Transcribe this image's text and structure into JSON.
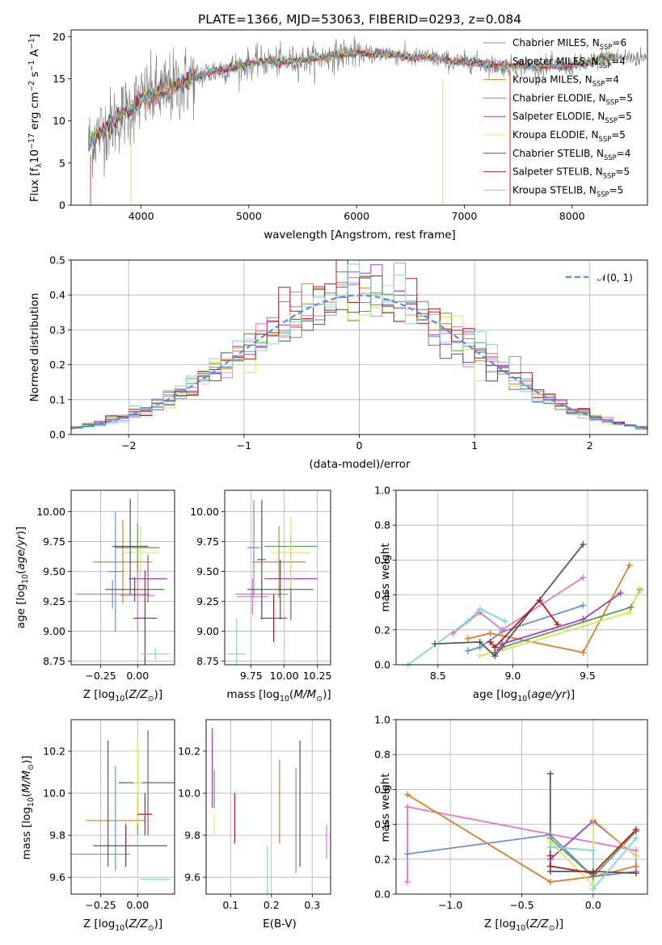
{
  "chart_data": [
    {
      "type": "line",
      "title": "PLATE=1366, MJD=53063, FIBERID=0293, z=0.084",
      "xlabel": "wavelength [Angstrom, rest frame]",
      "ylabel": "Flux [fλ10⁻¹⁷ erg cm⁻² s⁻¹ A⁻¹]",
      "xlim": [
        3350,
        8700
      ],
      "ylim": [
        0,
        20.8
      ],
      "xticks": [
        4000,
        5000,
        6000,
        7000,
        8000
      ],
      "yticks": [
        0,
        5,
        10,
        15,
        20
      ],
      "grid": false,
      "legend_position": "right",
      "continuum": {
        "x": [
          3500,
          3600,
          3700,
          3800,
          3900,
          4000,
          4100,
          4200,
          4300,
          4400,
          4500,
          4700,
          4900,
          5100,
          5300,
          5500,
          5700,
          5900,
          6100,
          6300,
          6500,
          6700,
          6900,
          7100,
          7300,
          7400,
          7600,
          7800,
          8000,
          8200,
          8300
        ],
        "y": [
          7.0,
          8.5,
          9.5,
          10.5,
          11.5,
          12.5,
          13.0,
          13.5,
          14.0,
          14.5,
          15.2,
          16.0,
          16.5,
          17.0,
          17.0,
          17.2,
          17.5,
          18.0,
          18.0,
          18.0,
          17.5,
          17.5,
          17.0,
          17.0,
          16.5,
          16.5,
          16.5,
          16.5,
          16.5,
          17.0,
          17.5
        ]
      },
      "series": [
        {
          "name": "Chabrier MILES, N_SSP=6",
          "label": "Chabrier MILES, N",
          "sub": "SSP",
          "n": "=6",
          "color": "#6a8fd8"
        },
        {
          "name": "Salpeter MILES, N_SSP=4",
          "label": "Salpeter MILES, N",
          "sub": "SSP",
          "n": "=4",
          "color": "#e377c2"
        },
        {
          "name": "Kroupa MILES, N_SSP=4",
          "label": "Kroupa MILES, N",
          "sub": "SSP",
          "n": "=4",
          "color": "#d97c2b"
        },
        {
          "name": "Chabrier ELODIE, N_SSP=5",
          "label": "Chabrier ELODIE, N",
          "sub": "SSP",
          "n": "=5",
          "color": "#5b9a5b"
        },
        {
          "name": "Salpeter ELODIE, N_SSP=5",
          "label": "Salpeter ELODIE, N",
          "sub": "SSP",
          "n": "=5",
          "color": "#a13fb8"
        },
        {
          "name": "Kroupa ELODIE, N_SSP=5",
          "label": "Kroupa ELODIE, N",
          "sub": "SSP",
          "n": "=5",
          "color": "#d4e85a"
        },
        {
          "name": "Chabrier STELIB, N_SSP=4",
          "label": "Chabrier STELIB, N",
          "sub": "SSP",
          "n": "=4",
          "color": "#555555"
        },
        {
          "name": "Salpeter STELIB, N_SSP=5",
          "label": "Salpeter STELIB, N",
          "sub": "SSP",
          "n": "=5",
          "color": "#b21c1c"
        },
        {
          "name": "Kroupa STELIB, N_SSP=5",
          "label": "Kroupa STELIB, N",
          "sub": "SSP",
          "n": "=5",
          "color": "#7fd6d6"
        }
      ]
    },
    {
      "type": "histogram",
      "xlabel": "(data-model)/error",
      "ylabel": "Normed distribution",
      "xlim": [
        -2.5,
        2.5
      ],
      "ylim": [
        0,
        0.5
      ],
      "xticks": [
        -2,
        -1,
        0,
        1,
        2
      ],
      "yticks": [
        0.0,
        0.1,
        0.2,
        0.3,
        0.4,
        0.5
      ],
      "grid": true,
      "legend": "𝒩(0, 1)",
      "legend_position": "top-right",
      "reference_curve": "N(0,1)",
      "bin_width": 0.1
    },
    {
      "type": "scatter",
      "xlabel": "Z [log₁₀(Z/Z⊙)]",
      "ylabel": "age  [log₁₀(age/yr)]",
      "xlim": [
        -0.45,
        0.25
      ],
      "ylim": [
        8.72,
        10.18
      ],
      "xticks": [
        -0.25,
        0.0
      ],
      "yticks": [
        8.75,
        9.0,
        9.25,
        9.5,
        9.75,
        10.0
      ],
      "grid": true,
      "points": [
        {
          "x": -0.17,
          "xerr": 0.25,
          "y": 9.31,
          "yerr": 0.12,
          "color": "#6a8fd8"
        },
        {
          "x": -0.15,
          "xerr": 0.05,
          "y": 9.5,
          "yerr": 0.5,
          "color": "#6a8fd8"
        },
        {
          "x": 0.0,
          "xerr": 0.12,
          "y": 9.3,
          "yerr": 0.3,
          "color": "#e377c2"
        },
        {
          "x": -0.1,
          "xerr": 0.2,
          "y": 9.58,
          "yerr": 0.35,
          "color": "#d97c2b"
        },
        {
          "x": 0.0,
          "xerr": 0.15,
          "y": 9.7,
          "yerr": 0.2,
          "color": "#5b9a5b"
        },
        {
          "x": 0.07,
          "xerr": 0.13,
          "y": 9.44,
          "yerr": 0.2,
          "color": "#a13fb8"
        },
        {
          "x": 0.02,
          "xerr": 0.12,
          "y": 9.66,
          "yerr": 0.22,
          "color": "#d4e85a"
        },
        {
          "x": -0.05,
          "xerr": 0.12,
          "y": 9.71,
          "yerr": 0.4,
          "color": "#555555"
        },
        {
          "x": -0.02,
          "xerr": 0.2,
          "y": 9.35,
          "yerr": 0.1,
          "color": "#555555"
        },
        {
          "x": 0.05,
          "xerr": 0.08,
          "y": 9.11,
          "yerr": 0.4,
          "color": "#b21c1c"
        },
        {
          "x": 0.12,
          "xerr": 0.1,
          "y": 8.81,
          "yerr": 0.05,
          "color": "#7fd6d6"
        }
      ]
    },
    {
      "type": "scatter",
      "xlabel": "mass [log₁₀(M/M⊙)]",
      "xlim": [
        9.55,
        10.35
      ],
      "ylim": [
        8.72,
        10.18
      ],
      "xticks": [
        9.75,
        10.0,
        10.25
      ],
      "xticklabels": [
        "9.75",
        "10.00",
        "10.25"
      ],
      "yticks": [
        8.75,
        9.0,
        9.25,
        9.5,
        9.75,
        10.0
      ],
      "grid": true,
      "points": [
        {
          "x": 9.83,
          "xerr": 0.2,
          "y": 9.31,
          "yerr": 0.12,
          "color": "#6a8fd8"
        },
        {
          "x": 9.77,
          "xerr": 0.05,
          "y": 9.7,
          "yerr": 0.4,
          "color": "#6a8fd8"
        },
        {
          "x": 9.76,
          "xerr": 0.12,
          "y": 9.29,
          "yerr": 0.15,
          "color": "#e377c2"
        },
        {
          "x": 9.96,
          "xerr": 0.2,
          "y": 9.58,
          "yerr": 0.3,
          "color": "#d97c2b"
        },
        {
          "x": 10.05,
          "xerr": 0.2,
          "y": 9.71,
          "yerr": 0.1,
          "color": "#5b9a5b"
        },
        {
          "x": 10.05,
          "xerr": 0.2,
          "y": 9.44,
          "yerr": 0.35,
          "color": "#a13fb8"
        },
        {
          "x": 10.05,
          "xerr": 0.15,
          "y": 9.66,
          "yerr": 0.3,
          "color": "#d4e85a"
        },
        {
          "x": 9.97,
          "xerr": 0.25,
          "y": 9.35,
          "yerr": 0.25,
          "color": "#555555"
        },
        {
          "x": 9.83,
          "xerr": 0.03,
          "y": 9.6,
          "yerr": 0.5,
          "color": "#555555"
        },
        {
          "x": 9.92,
          "xerr": 0.1,
          "y": 9.11,
          "yerr": 0.2,
          "color": "#b21c1c"
        },
        {
          "x": 9.64,
          "xerr": 0.07,
          "y": 8.81,
          "yerr": 0.3,
          "color": "#7fd6d6"
        }
      ]
    },
    {
      "type": "line",
      "xlabel": "age  [log₁₀(age/yr)]",
      "ylabel": "mass weight",
      "xlim": [
        8.22,
        9.9
      ],
      "ylim": [
        0,
        1.0
      ],
      "xticks": [
        8.5,
        9.0,
        9.5
      ],
      "yticks": [
        0.0,
        0.2,
        0.4,
        0.6,
        0.8,
        1.0
      ],
      "grid": true,
      "series": [
        {
          "color": "#6a8fd8",
          "x": [
            8.7,
            8.78,
            8.93,
            9.47
          ],
          "y": [
            0.08,
            0.1,
            0.19,
            0.34
          ]
        },
        {
          "color": "#e377c2",
          "x": [
            8.6,
            8.78,
            8.93,
            9.47
          ],
          "y": [
            0.18,
            0.3,
            0.2,
            0.5
          ]
        },
        {
          "color": "#d97c2b",
          "x": [
            8.7,
            8.85,
            9.47,
            9.78
          ],
          "y": [
            0.15,
            0.18,
            0.07,
            0.57
          ]
        },
        {
          "color": "#5b9a5b",
          "x": [
            8.88,
            8.93,
            9.79,
            9.85
          ],
          "y": [
            0.06,
            0.1,
            0.33,
            0.43
          ]
        },
        {
          "color": "#a13fb8",
          "x": [
            8.88,
            8.93,
            9.47,
            9.72
          ],
          "y": [
            0.07,
            0.12,
            0.26,
            0.41
          ]
        },
        {
          "color": "#d4e85a",
          "x": [
            8.78,
            9.0,
            9.47,
            9.78,
            9.85
          ],
          "y": [
            0.05,
            0.1,
            0.22,
            0.3,
            0.44
          ]
        },
        {
          "color": "#555555",
          "x": [
            8.48,
            8.78,
            8.88,
            9.47
          ],
          "y": [
            0.12,
            0.13,
            0.05,
            0.69
          ]
        },
        {
          "color": "#b21c1c",
          "x": [
            8.85,
            8.88,
            9.18,
            9.3
          ],
          "y": [
            0.13,
            0.1,
            0.37,
            0.23
          ]
        },
        {
          "color": "#7fd6d6",
          "x": [
            8.3,
            8.7,
            8.78,
            8.95
          ],
          "y": [
            0.0,
            0.25,
            0.32,
            0.25
          ]
        }
      ]
    },
    {
      "type": "scatter",
      "xlabel": "Z [log₁₀(Z/Z⊙)]",
      "ylabel": "mass [log₁₀(M/M⊙)]",
      "xlim": [
        -0.45,
        0.25
      ],
      "ylim": [
        9.52,
        10.35
      ],
      "xticks": [
        -0.25,
        0.0
      ],
      "yticks": [
        9.6,
        9.8,
        10.0,
        10.2
      ],
      "grid": true,
      "points": [
        {
          "x": -0.25,
          "xerr": 0.2,
          "y": 9.71,
          "yerr": 0.0,
          "color": "#6a8fd8"
        },
        {
          "x": -0.15,
          "xerr": 0.0,
          "y": 9.88,
          "yerr": 0.25,
          "color": "#6a8fd8"
        },
        {
          "x": -0.08,
          "xerr": 0.0,
          "y": 9.79,
          "yerr": 0.07,
          "color": "#e377c2"
        },
        {
          "x": -0.15,
          "xerr": 0.2,
          "y": 9.87,
          "yerr": 0.0,
          "color": "#d97c2b"
        },
        {
          "x": 0.0,
          "xerr": 0.0,
          "y": 9.9,
          "yerr": 0.1,
          "color": "#5b9a5b"
        },
        {
          "x": 0.07,
          "xerr": 0.2,
          "y": 10.05,
          "yerr": 0.0,
          "color": "#555555"
        },
        {
          "x": 0.07,
          "xerr": 0.0,
          "y": 10.05,
          "yerr": 0.25,
          "color": "#a13fb8"
        },
        {
          "x": 0.0,
          "xerr": 0.03,
          "y": 10.05,
          "yerr": 0.2,
          "color": "#d4e85a"
        },
        {
          "x": -0.2,
          "xerr": 0.0,
          "y": 9.95,
          "yerr": 0.3,
          "color": "#555555"
        },
        {
          "x": -0.05,
          "xerr": 0.25,
          "y": 9.75,
          "yerr": 0.0,
          "color": "#555555"
        },
        {
          "x": 0.05,
          "xerr": 0.05,
          "y": 9.9,
          "yerr": 0.1,
          "color": "#b21c1c"
        },
        {
          "x": -0.08,
          "xerr": 0.0,
          "y": 9.75,
          "yerr": 0.1,
          "color": "#b21c1c"
        },
        {
          "x": 0.12,
          "xerr": 0.1,
          "y": 9.59,
          "yerr": 0.0,
          "color": "#7fd6d6"
        }
      ]
    },
    {
      "type": "scatter",
      "xlabel": "E(B-V)",
      "xlim": [
        0.04,
        0.345
      ],
      "ylim": [
        9.52,
        10.35
      ],
      "xticks": [
        0.1,
        0.2,
        0.3
      ],
      "yticks": [
        9.6,
        9.8,
        10.0,
        10.2
      ],
      "grid": true,
      "points": [
        {
          "x": 0.055,
          "y": 10.12,
          "yerr": 0.19,
          "color": "#a13fb8"
        },
        {
          "x": 0.06,
          "y": 9.85,
          "yerr": 0.05,
          "color": "#d4e85a"
        },
        {
          "x": 0.06,
          "y": 10.02,
          "yerr": 0.09,
          "color": "#5b9a5b"
        },
        {
          "x": 0.11,
          "y": 9.88,
          "yerr": 0.12,
          "color": "#b21c1c"
        },
        {
          "x": 0.19,
          "y": 9.6,
          "yerr": 0.15,
          "color": "#7fd6d6"
        },
        {
          "x": 0.22,
          "y": 9.96,
          "yerr": 0.2,
          "color": "#d97c2b"
        },
        {
          "x": 0.26,
          "y": 9.87,
          "yerr": 0.25,
          "color": "#6a8fd8"
        },
        {
          "x": 0.27,
          "y": 9.95,
          "yerr": 0.3,
          "color": "#555555"
        },
        {
          "x": 0.335,
          "y": 9.77,
          "yerr": 0.08,
          "color": "#e377c2"
        }
      ]
    },
    {
      "type": "line",
      "xlabel": "Z [log₁₀(Z/Z⊙)]",
      "ylabel": "mass weight",
      "xlim": [
        -1.38,
        0.38
      ],
      "ylim": [
        0,
        1.0
      ],
      "xticks": [
        -1.0,
        -0.5,
        0.0
      ],
      "yticks": [
        0.0,
        0.2,
        0.4,
        0.6,
        0.8,
        1.0
      ],
      "grid": true,
      "series": [
        {
          "color": "#6a8fd8",
          "x": [
            -1.3,
            -0.3,
            0.0,
            0.3
          ],
          "y": [
            0.23,
            0.34,
            0.1,
            0.13
          ]
        },
        {
          "color": "#e377c2",
          "x": [
            -1.3,
            -1.3,
            0.3,
            0.3
          ],
          "y": [
            0.07,
            0.5,
            0.25,
            0.13
          ]
        },
        {
          "color": "#d97c2b",
          "x": [
            -1.3,
            -0.3,
            0.0,
            0.3
          ],
          "y": [
            0.57,
            0.07,
            0.1,
            0.16
          ]
        },
        {
          "color": "#5b9a5b",
          "x": [
            -0.3,
            0.0,
            0.3
          ],
          "y": [
            0.32,
            0.1,
            0.36
          ]
        },
        {
          "color": "#a13fb8",
          "x": [
            -0.3,
            0.0,
            0.3
          ],
          "y": [
            0.2,
            0.42,
            0.22
          ]
        },
        {
          "color": "#d4e85a",
          "x": [
            -0.3,
            0.0,
            0.0,
            0.3
          ],
          "y": [
            0.3,
            0.05,
            0.43,
            0.22
          ]
        },
        {
          "color": "#555555",
          "x": [
            -0.3,
            -0.3,
            0.0,
            0.3
          ],
          "y": [
            0.69,
            0.13,
            0.13,
            0.12
          ]
        },
        {
          "color": "#b21c1c",
          "x": [
            -0.3,
            -0.3,
            0.0,
            0.3
          ],
          "y": [
            0.22,
            0.16,
            0.12,
            0.37
          ]
        },
        {
          "color": "#7fd6d6",
          "x": [
            -0.3,
            0.0,
            0.0,
            0.3
          ],
          "y": [
            0.27,
            0.25,
            0.03,
            0.32
          ]
        }
      ]
    }
  ]
}
